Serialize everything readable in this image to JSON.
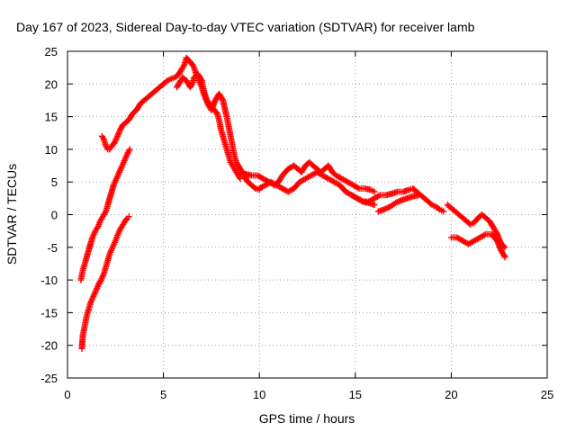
{
  "chart_data": {
    "type": "scatter",
    "title": "Day 167 of 2023, Sidereal Day-to-day VTEC variation (SDTVAR) for receiver lamb",
    "xlabel": "GPS time / hours",
    "ylabel": "SDTVAR / TECUs",
    "xlim": [
      0,
      25
    ],
    "ylim": [
      -25,
      25
    ],
    "xticks": [
      0,
      5,
      10,
      15,
      20,
      25
    ],
    "yticks": [
      -25,
      -20,
      -15,
      -10,
      -5,
      0,
      5,
      10,
      15,
      20,
      25
    ],
    "xtick_labels": [
      "0",
      "5",
      "10",
      "15",
      "20",
      "25"
    ],
    "ytick_labels": [
      "-25",
      "-20",
      "-15",
      "-10",
      "-5",
      "0",
      "5",
      "10",
      "15",
      "20",
      "25"
    ],
    "grid": true,
    "marker": "plus",
    "color": "#ff0000",
    "series": [
      {
        "name": "arc-a-early-low",
        "x": [
          0.75,
          0.8,
          0.9,
          1.0,
          1.1,
          1.2,
          1.35,
          1.5,
          1.6,
          1.75,
          1.9,
          2.0,
          2.1,
          2.2,
          2.35,
          2.5,
          2.6,
          2.75,
          2.9,
          3.0,
          3.1,
          3.2
        ],
        "y": [
          -20.5,
          -18.5,
          -17.0,
          -15.5,
          -14.5,
          -13.5,
          -12.5,
          -11.5,
          -10.8,
          -10.0,
          -9.0,
          -8.0,
          -7.0,
          -6.0,
          -5.0,
          -4.0,
          -3.2,
          -2.2,
          -1.5,
          -1.0,
          -0.6,
          -0.3
        ]
      },
      {
        "name": "arc-b-early-rising",
        "x": [
          0.7,
          0.8,
          0.9,
          1.0,
          1.15,
          1.3,
          1.45,
          1.6,
          1.7,
          1.8,
          1.9,
          2.0,
          2.1,
          2.25,
          2.4,
          2.55,
          2.7,
          2.85,
          3.0,
          3.15,
          3.25
        ],
        "y": [
          -10.0,
          -8.5,
          -7.5,
          -6.5,
          -5.0,
          -3.5,
          -2.5,
          -1.8,
          -1.0,
          -0.5,
          0.0,
          0.5,
          1.5,
          3.0,
          4.5,
          5.5,
          6.5,
          7.5,
          8.5,
          9.5,
          10.0
        ]
      },
      {
        "name": "arc-c-morning-peak",
        "x": [
          1.8,
          1.9,
          2.0,
          2.1,
          2.2,
          2.3,
          2.45,
          2.6,
          2.75,
          2.9,
          3.0,
          3.2,
          3.4,
          3.6,
          3.8,
          4.0,
          4.2,
          4.4,
          4.6,
          4.8,
          5.0,
          5.2,
          5.4,
          5.6,
          5.8,
          6.0,
          6.1,
          6.2,
          6.35,
          6.5,
          6.6,
          6.7,
          6.85,
          7.0,
          7.1,
          7.25,
          7.4,
          7.5,
          7.65,
          7.8,
          7.9,
          8.0,
          8.1,
          8.2,
          8.3,
          8.4,
          8.5,
          8.6,
          8.7,
          8.8,
          8.9,
          9.0
        ],
        "y": [
          12.0,
          11.5,
          10.5,
          10.0,
          10.0,
          10.5,
          11.0,
          12.0,
          13.0,
          13.8,
          14.0,
          14.5,
          15.5,
          16.0,
          17.0,
          17.5,
          18.0,
          18.5,
          19.0,
          19.5,
          20.0,
          20.5,
          20.8,
          21.0,
          21.5,
          22.5,
          23.0,
          24.0,
          23.5,
          23.0,
          22.5,
          21.5,
          20.5,
          19.5,
          18.5,
          17.5,
          17.0,
          16.5,
          16.0,
          15.5,
          14.5,
          13.0,
          12.0,
          11.0,
          10.0,
          9.0,
          8.0,
          7.5,
          7.0,
          6.5,
          6.0,
          5.5
        ]
      },
      {
        "name": "arc-d-morning-low",
        "x": [
          5.7,
          5.9,
          6.0,
          6.2,
          6.4,
          6.5,
          6.6,
          6.8,
          7.0,
          7.1,
          7.3,
          7.5,
          7.7,
          7.9,
          8.1,
          8.3,
          8.4,
          8.5,
          8.6,
          8.7,
          8.8,
          9.0,
          9.2,
          9.4,
          9.6,
          9.8,
          10.0
        ],
        "y": [
          19.5,
          20.5,
          21.0,
          20.5,
          19.5,
          20.0,
          21.0,
          21.5,
          20.5,
          19.0,
          17.0,
          16.0,
          17.5,
          18.5,
          17.5,
          15.0,
          13.5,
          12.0,
          10.5,
          9.0,
          8.0,
          7.0,
          6.0,
          5.0,
          4.5,
          4.0,
          3.8
        ]
      },
      {
        "name": "arc-e-afternoon-upper",
        "x": [
          9.0,
          9.3,
          9.6,
          9.9,
          10.2,
          10.5,
          10.8,
          11.0,
          11.2,
          11.5,
          11.8,
          12.0,
          12.2,
          12.4,
          12.6,
          12.8,
          13.0,
          13.2,
          13.4,
          13.6,
          13.8,
          14.0,
          14.3,
          14.6,
          14.9,
          15.2,
          15.5,
          15.8,
          16.0
        ],
        "y": [
          6.5,
          6.2,
          6.0,
          6.0,
          5.5,
          5.0,
          4.5,
          5.0,
          6.0,
          7.0,
          7.5,
          7.0,
          6.5,
          7.5,
          8.0,
          7.5,
          7.0,
          6.5,
          7.0,
          7.5,
          6.5,
          6.0,
          5.5,
          5.0,
          4.5,
          4.0,
          4.0,
          3.8,
          3.5
        ]
      },
      {
        "name": "arc-f-afternoon-lower",
        "x": [
          10.0,
          10.3,
          10.6,
          10.9,
          11.2,
          11.5,
          11.8,
          12.1,
          12.4,
          12.7,
          13.0,
          13.3,
          13.6,
          13.9,
          14.2,
          14.5,
          14.8,
          15.1,
          15.4,
          15.7,
          16.0
        ],
        "y": [
          4.0,
          4.5,
          5.0,
          4.5,
          4.0,
          3.5,
          4.0,
          5.0,
          5.5,
          6.0,
          6.5,
          6.0,
          5.5,
          5.0,
          4.5,
          3.5,
          3.0,
          2.5,
          2.0,
          1.8,
          1.5
        ]
      },
      {
        "name": "arc-g-evening",
        "x": [
          14.8,
          15.1,
          15.4,
          15.7,
          16.0,
          16.3,
          16.6,
          16.9,
          17.2,
          17.5,
          17.8,
          18.0,
          18.2,
          18.4,
          18.6,
          18.8,
          19.0,
          19.2,
          19.4,
          19.6
        ],
        "y": [
          3.0,
          2.5,
          2.0,
          2.0,
          2.5,
          3.0,
          3.0,
          3.2,
          3.5,
          3.5,
          3.8,
          4.0,
          3.5,
          3.0,
          2.5,
          2.0,
          1.5,
          1.2,
          0.8,
          0.5
        ]
      },
      {
        "name": "arc-h-evening-low",
        "x": [
          16.2,
          16.5,
          16.8,
          17.1,
          17.4,
          17.7,
          18.0,
          18.3
        ],
        "y": [
          0.5,
          0.8,
          1.2,
          1.8,
          2.2,
          2.5,
          2.8,
          3.0
        ]
      },
      {
        "name": "arc-i-late",
        "x": [
          19.8,
          20.0,
          20.2,
          20.4,
          20.6,
          20.8,
          21.0,
          21.2,
          21.4,
          21.6,
          21.8,
          22.0,
          22.2,
          22.4,
          22.6,
          22.8
        ],
        "y": [
          1.5,
          1.0,
          0.5,
          0.0,
          -0.5,
          -1.0,
          -1.5,
          -1.2,
          -0.5,
          0.0,
          -0.5,
          -1.0,
          -2.0,
          -3.0,
          -4.5,
          -5.0
        ]
      },
      {
        "name": "arc-j-late-low",
        "x": [
          20.0,
          20.3,
          20.6,
          20.9,
          21.2,
          21.5,
          21.8,
          22.1,
          22.4,
          22.6,
          22.8
        ],
        "y": [
          -3.5,
          -3.5,
          -4.0,
          -4.5,
          -4.0,
          -3.5,
          -3.0,
          -3.0,
          -4.0,
          -5.5,
          -6.5
        ]
      }
    ]
  }
}
